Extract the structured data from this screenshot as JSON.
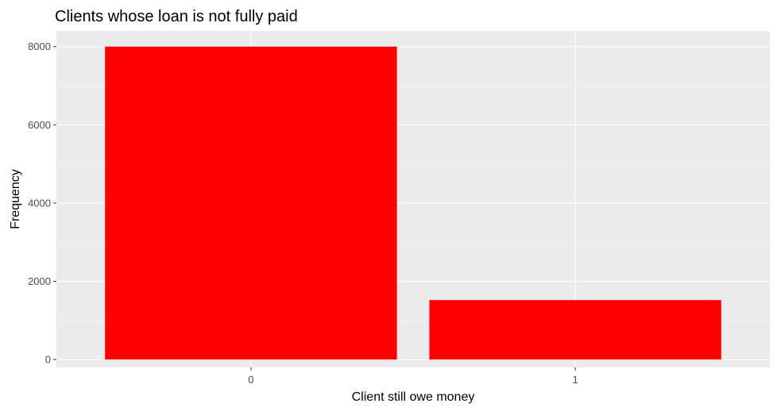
{
  "chart_data": {
    "type": "bar",
    "title": "Clients whose loan is not fully paid",
    "xlabel": "Client still owe money",
    "ylabel": "Frequency",
    "categories": [
      "0",
      "1"
    ],
    "values": [
      8000,
      1520
    ],
    "ylim": [
      -200,
      8400
    ],
    "yticks": [
      0,
      2000,
      4000,
      6000,
      8000
    ],
    "ytick_labels": [
      "0",
      "2000",
      "4000",
      "6000",
      "8000"
    ],
    "grid": true,
    "legend": "none",
    "colors": {
      "bar": "#ff0000",
      "panel": "#ebebeb",
      "grid_major": "#ffffff",
      "tick_text": "#4d4d4d"
    }
  }
}
